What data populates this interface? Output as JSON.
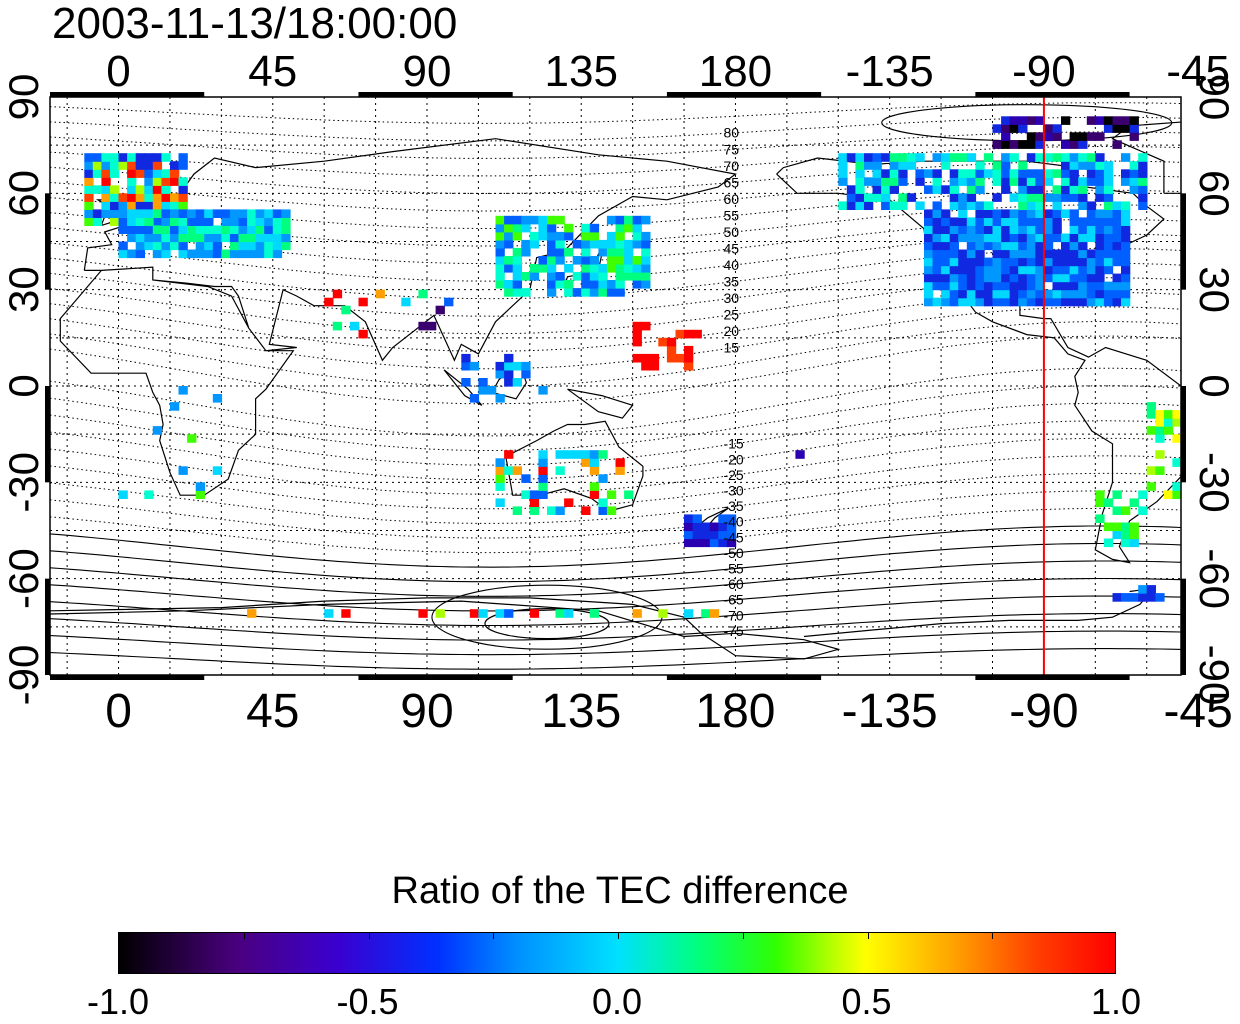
{
  "title": "2003-11-13/18:00:00",
  "longitude_ticks": [
    "0",
    "45",
    "90",
    "135",
    "180",
    "-135",
    "-90",
    "-45"
  ],
  "latitude_ticks": [
    "90",
    "60",
    "30",
    "0",
    "-30",
    "-60",
    "-90"
  ],
  "latitude_ticks_right": [
    "90",
    "60",
    "30",
    "0",
    "-30",
    "-60",
    "-90"
  ],
  "contour_labels": [
    "80",
    "75",
    "70",
    "65",
    "60",
    "55",
    "50",
    "45",
    "40",
    "35",
    "30",
    "25",
    "20",
    "15",
    "-15",
    "-20",
    "-25",
    "-30",
    "-35",
    "-40",
    "-45",
    "-50",
    "-55",
    "-60",
    "-65",
    "-70",
    "-75"
  ],
  "colorbar": {
    "title": "Ratio of the TEC difference",
    "tick_labels": [
      "-1.0",
      "-0.5",
      "0.0",
      "0.5",
      "1.0"
    ],
    "range": [
      -1.0,
      1.0
    ],
    "colors": [
      "#000000",
      "#4a0080",
      "#0030ff",
      "#00e0ff",
      "#30ff00",
      "#ffff00",
      "#ff0000"
    ]
  },
  "meridian_line": {
    "longitude": -90,
    "color": "#ff0000"
  },
  "map": {
    "lon_range": [
      -20,
      310
    ],
    "lat_range": [
      -90,
      90
    ],
    "grid_lon_step": 15,
    "grid_lat_step": 15
  }
}
